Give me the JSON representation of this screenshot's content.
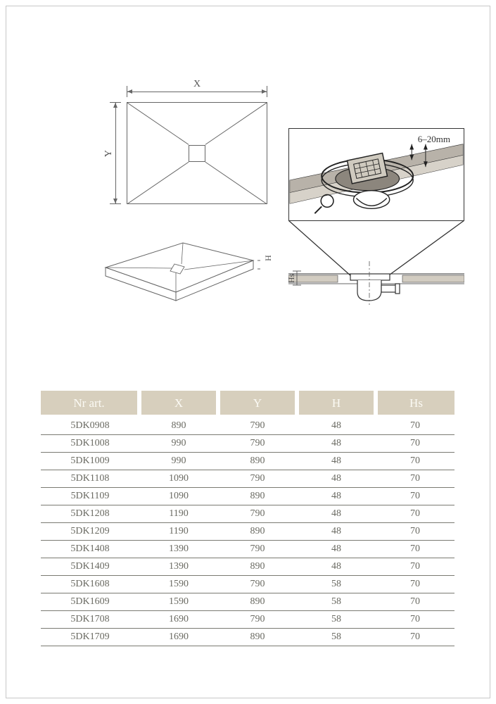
{
  "diagram": {
    "labels": {
      "x": "X",
      "y": "Y",
      "h": "H",
      "hs": "Hs",
      "thickness_range": "6–20mm"
    },
    "line_color": "#666666",
    "callout_border_color": "#333333",
    "callout_fill": "#a8a29a"
  },
  "table": {
    "header_bg": "#d7cfbd",
    "header_fg": "#fbfaf4",
    "row_fg": "#6a6a62",
    "rule_color": "#7a7a72",
    "columns": [
      "Nr art.",
      "X",
      "Y",
      "H",
      "Hs"
    ],
    "rows": [
      [
        "5DK0908",
        "890",
        "790",
        "48",
        "70"
      ],
      [
        "5DK1008",
        "990",
        "790",
        "48",
        "70"
      ],
      [
        "5DK1009",
        "990",
        "890",
        "48",
        "70"
      ],
      [
        "5DK1108",
        "1090",
        "790",
        "48",
        "70"
      ],
      [
        "5DK1109",
        "1090",
        "890",
        "48",
        "70"
      ],
      [
        "5DK1208",
        "1190",
        "790",
        "48",
        "70"
      ],
      [
        "5DK1209",
        "1190",
        "890",
        "48",
        "70"
      ],
      [
        "5DK1408",
        "1390",
        "790",
        "48",
        "70"
      ],
      [
        "5DK1409",
        "1390",
        "890",
        "48",
        "70"
      ],
      [
        "5DK1608",
        "1590",
        "790",
        "58",
        "70"
      ],
      [
        "5DK1609",
        "1590",
        "890",
        "58",
        "70"
      ],
      [
        "5DK1708",
        "1690",
        "790",
        "58",
        "70"
      ],
      [
        "5DK1709",
        "1690",
        "890",
        "58",
        "70"
      ]
    ]
  }
}
